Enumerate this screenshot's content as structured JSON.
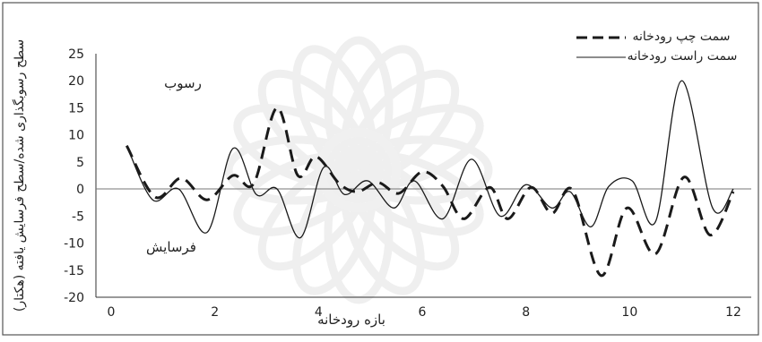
{
  "chart_data": {
    "type": "line",
    "xlabel": "بازه رودخانه",
    "ylabel": "سطح رسوبگذاری شده/سطح فرسایش یافته (هکتار)",
    "xlim": [
      0,
      12
    ],
    "ylim": [
      -20,
      25
    ],
    "x_ticks": [
      0,
      2,
      4,
      6,
      8,
      10,
      12
    ],
    "y_ticks": [
      -20,
      -15,
      -10,
      -5,
      0,
      5,
      10,
      15,
      20,
      25
    ],
    "grid": false,
    "legend_position": "top-right",
    "annotations": [
      {
        "text": "رسوب",
        "x": 1.8,
        "y": 20
      },
      {
        "text": "فرسایش",
        "x": 1.7,
        "y": -11.5
      }
    ],
    "series": [
      {
        "name": "سمت چپ رودخانه",
        "style": "dashed",
        "color": "#1a1a1a",
        "points": [
          [
            0.3,
            8
          ],
          [
            0.85,
            -1.5
          ],
          [
            1.35,
            2
          ],
          [
            1.85,
            -2
          ],
          [
            2.35,
            2.5
          ],
          [
            2.75,
            1
          ],
          [
            3.2,
            15
          ],
          [
            3.6,
            2.5
          ],
          [
            3.95,
            6
          ],
          [
            4.4,
            1
          ],
          [
            4.75,
            -0.5
          ],
          [
            5.15,
            1.2
          ],
          [
            5.55,
            -0.8
          ],
          [
            6.0,
            3.2
          ],
          [
            6.4,
            0.5
          ],
          [
            6.8,
            -5.5
          ],
          [
            7.3,
            0.3
          ],
          [
            7.65,
            -5.5
          ],
          [
            8.1,
            0.3
          ],
          [
            8.5,
            -4.5
          ],
          [
            8.9,
            -0.2
          ],
          [
            9.45,
            -16
          ],
          [
            9.95,
            -3.5
          ],
          [
            10.5,
            -12
          ],
          [
            11.05,
            2.2
          ],
          [
            11.55,
            -8.5
          ],
          [
            12.0,
            -0.5
          ]
        ]
      },
      {
        "name": "سمت راست رودخانه",
        "style": "solid",
        "color": "#1a1a1a",
        "points": [
          [
            0.3,
            8
          ],
          [
            0.8,
            -2
          ],
          [
            1.3,
            0
          ],
          [
            1.85,
            -8
          ],
          [
            2.35,
            7.5
          ],
          [
            2.8,
            -1
          ],
          [
            3.2,
            0
          ],
          [
            3.65,
            -9
          ],
          [
            4.1,
            4
          ],
          [
            4.5,
            -1
          ],
          [
            4.95,
            1.5
          ],
          [
            5.45,
            -3.5
          ],
          [
            5.85,
            1.5
          ],
          [
            6.4,
            -5.5
          ],
          [
            6.95,
            5.5
          ],
          [
            7.5,
            -5
          ],
          [
            8.0,
            0.8
          ],
          [
            8.5,
            -3.5
          ],
          [
            8.85,
            -0.5
          ],
          [
            9.25,
            -7
          ],
          [
            9.6,
            0.5
          ],
          [
            10.05,
            1.5
          ],
          [
            10.5,
            -6
          ],
          [
            11.0,
            20
          ],
          [
            11.6,
            -3.5
          ],
          [
            12.0,
            0
          ]
        ]
      }
    ]
  }
}
